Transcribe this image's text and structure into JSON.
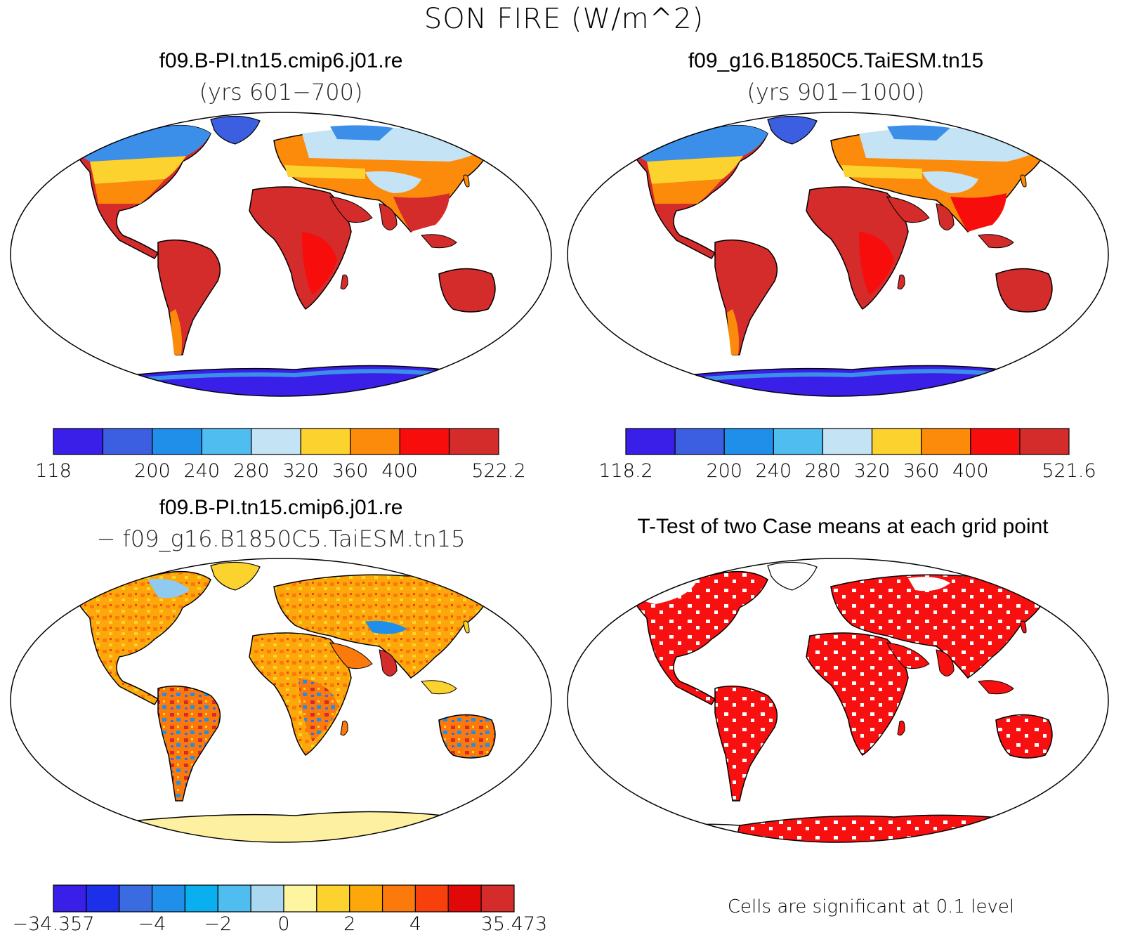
{
  "title": "SON FIRE (W/m^2)",
  "panels": [
    {
      "id": "top-left",
      "title": "f09.B-PI.tn15.cmip6.j01.re",
      "subtitle": "(yrs 601−700)",
      "colorbar": {
        "colors": [
          "#3a1fe8",
          "#3b5fe0",
          "#1f8fea",
          "#4fbdf0",
          "#c4e3f4",
          "#fcd22e",
          "#fc8a0b",
          "#f80d0d",
          "#d42b2b"
        ],
        "labels": [
          "118",
          "200",
          "240",
          "280",
          "320",
          "360",
          "400",
          "522.2"
        ],
        "label_edges": [
          0,
          2,
          3,
          4,
          5,
          6,
          7,
          9
        ]
      }
    },
    {
      "id": "top-right",
      "title": "f09_g16.B1850C5.TaiESM.tn15",
      "subtitle": "(yrs 901−1000)",
      "colorbar": {
        "colors": [
          "#3a1fe8",
          "#3b5fe0",
          "#1f8fea",
          "#4fbdf0",
          "#c4e3f4",
          "#fcd22e",
          "#fc8a0b",
          "#f80d0d",
          "#d42b2b"
        ],
        "labels": [
          "118.2",
          "200",
          "240",
          "280",
          "320",
          "360",
          "400",
          "521.6"
        ],
        "label_edges": [
          0,
          2,
          3,
          4,
          5,
          6,
          7,
          9
        ]
      }
    },
    {
      "id": "bottom-left",
      "title": "f09.B-PI.tn15.cmip6.j01.re",
      "subtitle": "− f09_g16.B1850C5.TaiESM.tn15",
      "colorbar": {
        "colors": [
          "#3a1fe8",
          "#1b30e8",
          "#3b6be0",
          "#1f8fea",
          "#0aaff0",
          "#4fbdf0",
          "#aad8f0",
          "#fdf5a0",
          "#fcd22e",
          "#fca80b",
          "#fc7a0b",
          "#f8400d",
          "#e00808",
          "#d42b2b"
        ],
        "labels": [
          "−34.357",
          "−4",
          "−2",
          "0",
          "2",
          "4",
          "35.473"
        ],
        "label_edges": [
          0,
          3,
          5,
          7,
          9,
          11,
          14
        ]
      }
    },
    {
      "id": "bottom-right",
      "title": "T-Test of two Case means at each grid point",
      "footnote": "Cells are significant at 0.1 level"
    }
  ],
  "map_colors": {
    "polar": "#3a1fe8",
    "subpolar": "#3b8fe8",
    "boreal": "#c4e3f4",
    "temperate": "#fcd22e",
    "warm": "#fc8a0b",
    "tropical": "#d42b2b",
    "diff_base": "#fca80b",
    "diff_pos": "#f8400d",
    "diff_neg": "#1f8fea",
    "diff_ant": "#fdf0a0",
    "sig": "#f81010"
  }
}
